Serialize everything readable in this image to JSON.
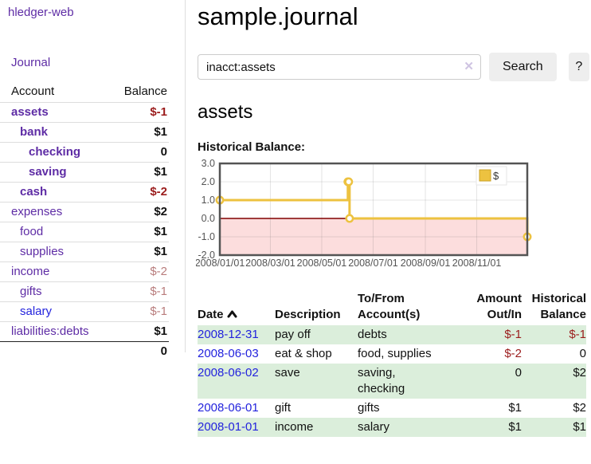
{
  "colors": {
    "purple": "#5e2ca5",
    "link_blue": "#2323dd",
    "negative": "#9b1c1c",
    "negative_soft": "#b97d7d",
    "row_stripe": "#dbeedb",
    "chart_gold": "#edc240",
    "chart_negative_fill": "#fcdddd",
    "chart_zero_line": "#800000",
    "chart_border": "#545454",
    "axis_text": "#545454"
  },
  "sidebar": {
    "brand": "hledger-web",
    "journal_link": "Journal",
    "accounts_table": {
      "header_account": "Account",
      "header_balance": "Balance",
      "rows": [
        {
          "name": "assets",
          "balance": "$-1",
          "indent": 0,
          "bold": true,
          "neg": "strong"
        },
        {
          "name": "bank",
          "balance": "$1",
          "indent": 1,
          "bold": true
        },
        {
          "name": "checking",
          "balance": "0",
          "indent": 2,
          "bold": true
        },
        {
          "name": "saving",
          "balance": "$1",
          "indent": 2,
          "bold": true
        },
        {
          "name": "cash",
          "balance": "$-2",
          "indent": 1,
          "bold": true,
          "neg": "strong"
        },
        {
          "name": "expenses",
          "balance": "$2",
          "indent": 0
        },
        {
          "name": "food",
          "balance": "$1",
          "indent": 1
        },
        {
          "name": "supplies",
          "balance": "$1",
          "indent": 1
        },
        {
          "name": "income",
          "balance": "$-2",
          "indent": 0,
          "neg": "soft"
        },
        {
          "name": "gifts",
          "balance": "$-1",
          "indent": 1,
          "neg": "soft"
        },
        {
          "name": "salary",
          "balance": "$-1",
          "indent": 1,
          "neg": "soft",
          "blue": true
        },
        {
          "name": "liabilities:debts",
          "balance": "$1",
          "indent": 0
        }
      ],
      "total": "0"
    }
  },
  "header": {
    "title": "sample.journal"
  },
  "search": {
    "query": "inacct:assets",
    "clear_icon": "✕",
    "button_label": "Search",
    "help_label": "?"
  },
  "account_page": {
    "heading": "assets",
    "chart_label": "Historical Balance:"
  },
  "chart_data": {
    "type": "line",
    "title": "Historical Balance",
    "series": [
      {
        "name": "$",
        "color": "#edc240",
        "steps": true,
        "points": [
          [
            "2008-01-01",
            1
          ],
          [
            "2008-06-01",
            2
          ],
          [
            "2008-06-02",
            2
          ],
          [
            "2008-06-03",
            0
          ],
          [
            "2008-12-31",
            -1
          ]
        ]
      }
    ],
    "x_range": [
      "2008-01-01",
      "2008-12-31"
    ],
    "ylim": [
      -2,
      3
    ],
    "y_ticks": [
      3.0,
      2.0,
      1.0,
      0.0,
      -1.0,
      -2.0
    ],
    "y_tick_labels": [
      "3.0",
      "2.0",
      "1.0",
      "0.0",
      "-1.0",
      "-2.0"
    ],
    "x_tick_dates": [
      "2008-01-01",
      "2008-03-01",
      "2008-05-01",
      "2008-07-01",
      "2008-09-01",
      "2008-11-01"
    ],
    "x_tick_labels": [
      "2008/01/01",
      "2008/03/01",
      "2008/05/01",
      "2008/07/01",
      "2008/09/01",
      "2008/11/01"
    ],
    "grid": true,
    "legend": {
      "label": "$",
      "position": "top-right"
    },
    "negative_region_fill": "#fcdddd",
    "zero_line_color": "#800000"
  },
  "transactions": {
    "headers": {
      "date": "Date",
      "description": "Description",
      "accounts": "To/From Account(s)",
      "amount": "Amount Out/In",
      "balance": "Historical Balance"
    },
    "rows": [
      {
        "date": "2008-12-31",
        "description": "pay off",
        "accounts": "debts",
        "amount": "$-1",
        "amount_neg": true,
        "balance": "$-1",
        "balance_neg": true,
        "stripe": true
      },
      {
        "date": "2008-06-03",
        "description": "eat & shop",
        "accounts": "food, supplies",
        "amount": "$-2",
        "amount_neg": true,
        "balance": "0",
        "balance_neg": false,
        "stripe": false
      },
      {
        "date": "2008-06-02",
        "description": "save",
        "accounts": "saving,\nchecking",
        "amount": "0",
        "amount_neg": false,
        "balance": "$2",
        "balance_neg": false,
        "stripe": true
      },
      {
        "date": "2008-06-01",
        "description": "gift",
        "accounts": "gifts",
        "amount": "$1",
        "amount_neg": false,
        "balance": "$2",
        "balance_neg": false,
        "stripe": false
      },
      {
        "date": "2008-01-01",
        "description": "income",
        "accounts": "salary",
        "amount": "$1",
        "amount_neg": false,
        "balance": "$1",
        "balance_neg": false,
        "stripe": true
      }
    ]
  }
}
